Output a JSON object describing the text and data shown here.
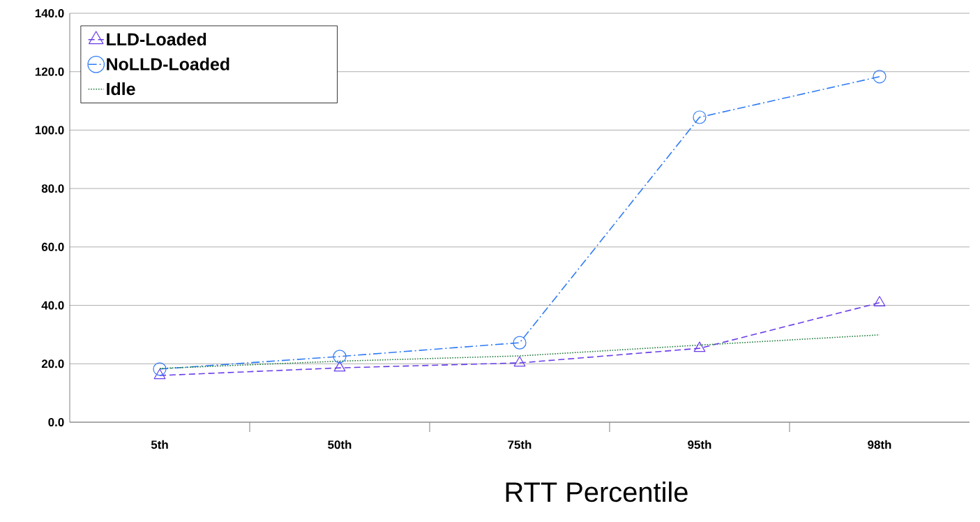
{
  "chart_data": {
    "type": "line",
    "xlabel": "RTT Percentile",
    "categories": [
      "5th",
      "50th",
      "75th",
      "95th",
      "98th"
    ],
    "series": [
      {
        "name": "LLD-Loaded",
        "color": "#6a3de8",
        "marker": "triangle",
        "line_style": "dashed",
        "values": [
          16.0,
          18.6,
          20.3,
          25.3,
          40.9
        ]
      },
      {
        "name": "NoLLD-Loaded",
        "color": "#2f7bf5",
        "marker": "circle",
        "line_style": "dashdot",
        "values": [
          18.2,
          22.5,
          27.2,
          104.4,
          118.3
        ]
      },
      {
        "name": "Idle",
        "color": "#1e7a3a",
        "marker": "none",
        "line_style": "dotted",
        "values": [
          18.4,
          20.9,
          22.7,
          26.4,
          29.9
        ]
      }
    ],
    "ylim": [
      0,
      140
    ],
    "yticks": [
      {
        "value": 0,
        "label": "0.0"
      },
      {
        "value": 20,
        "label": "20.0"
      },
      {
        "value": 40,
        "label": "40.0"
      },
      {
        "value": 60,
        "label": "60.0"
      },
      {
        "value": 80,
        "label": "80.0"
      },
      {
        "value": 100,
        "label": "100.0"
      },
      {
        "value": 120,
        "label": "120.0"
      },
      {
        "value": 140,
        "label": "140.0"
      }
    ],
    "grid": "y",
    "legend": "top left"
  }
}
